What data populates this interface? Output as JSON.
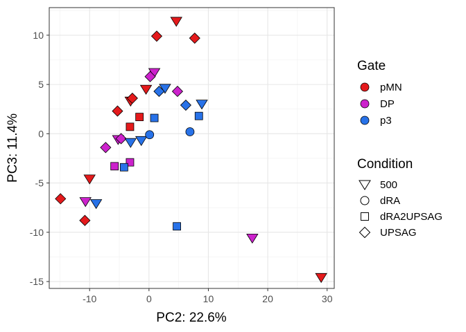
{
  "chart_data": {
    "type": "scatter",
    "xlabel": "PC2: 22.6%",
    "ylabel": "PC3: 11.4%",
    "xlim": [
      -16.8,
      31.2
    ],
    "ylim": [
      -15.7,
      12.8
    ],
    "xticks": [
      -10,
      0,
      10,
      20,
      30
    ],
    "yticks": [
      -15,
      -10,
      -5,
      0,
      5,
      10
    ],
    "xtick_labels": [
      "-10",
      "0",
      "10",
      "20",
      "30"
    ],
    "ytick_labels": [
      "-15",
      "-10",
      "-5",
      "0",
      "5",
      "10"
    ],
    "grid": true,
    "legend_position": "right",
    "colors": {
      "pMN": "#e41a1c",
      "DP": "#cc22cc",
      "p3": "#2872e8"
    },
    "legends": [
      {
        "title": "Gate",
        "kind": "fill",
        "entries": [
          {
            "label": "pMN"
          },
          {
            "label": "DP"
          },
          {
            "label": "p3"
          }
        ]
      },
      {
        "title": "Condition",
        "kind": "shape",
        "entries": [
          {
            "label": "500",
            "shape": "triangle-down"
          },
          {
            "label": "dRA",
            "shape": "circle"
          },
          {
            "label": "dRA2UPSAG",
            "shape": "square"
          },
          {
            "label": "UPSAG",
            "shape": "diamond"
          }
        ]
      }
    ],
    "points": [
      {
        "x": 4.6,
        "y": 11.4,
        "gate": "pMN",
        "condition": "500"
      },
      {
        "x": -0.5,
        "y": 4.5,
        "gate": "pMN",
        "condition": "500"
      },
      {
        "x": -3.1,
        "y": 3.3,
        "gate": "pMN",
        "condition": "500"
      },
      {
        "x": -10.0,
        "y": -4.6,
        "gate": "pMN",
        "condition": "500"
      },
      {
        "x": 29.0,
        "y": -14.6,
        "gate": "pMN",
        "condition": "500"
      },
      {
        "x": -3.2,
        "y": 0.7,
        "gate": "pMN",
        "condition": "dRA2UPSAG"
      },
      {
        "x": -1.6,
        "y": 1.7,
        "gate": "pMN",
        "condition": "dRA2UPSAG"
      },
      {
        "x": 1.3,
        "y": 9.9,
        "gate": "pMN",
        "condition": "UPSAG"
      },
      {
        "x": 7.7,
        "y": 9.7,
        "gate": "pMN",
        "condition": "UPSAG"
      },
      {
        "x": -2.8,
        "y": 3.6,
        "gate": "pMN",
        "condition": "UPSAG"
      },
      {
        "x": -5.3,
        "y": 2.3,
        "gate": "pMN",
        "condition": "UPSAG"
      },
      {
        "x": -14.9,
        "y": -6.6,
        "gate": "pMN",
        "condition": "UPSAG"
      },
      {
        "x": -10.8,
        "y": -8.8,
        "gate": "pMN",
        "condition": "UPSAG"
      },
      {
        "x": 0.9,
        "y": 6.2,
        "gate": "DP",
        "condition": "500"
      },
      {
        "x": -5.2,
        "y": -0.6,
        "gate": "DP",
        "condition": "500"
      },
      {
        "x": -10.7,
        "y": -6.9,
        "gate": "DP",
        "condition": "500"
      },
      {
        "x": 17.4,
        "y": -10.6,
        "gate": "DP",
        "condition": "500"
      },
      {
        "x": -5.8,
        "y": -3.3,
        "gate": "DP",
        "condition": "dRA2UPSAG"
      },
      {
        "x": -3.2,
        "y": -2.9,
        "gate": "DP",
        "condition": "dRA2UPSAG"
      },
      {
        "x": 0.2,
        "y": 5.8,
        "gate": "DP",
        "condition": "UPSAG"
      },
      {
        "x": 4.8,
        "y": 4.3,
        "gate": "DP",
        "condition": "UPSAG"
      },
      {
        "x": -7.3,
        "y": -1.4,
        "gate": "DP",
        "condition": "UPSAG"
      },
      {
        "x": -4.7,
        "y": -0.5,
        "gate": "DP",
        "condition": "UPSAG"
      },
      {
        "x": 2.7,
        "y": 4.6,
        "gate": "p3",
        "condition": "500"
      },
      {
        "x": 8.9,
        "y": 3.0,
        "gate": "p3",
        "condition": "500"
      },
      {
        "x": -1.3,
        "y": -0.7,
        "gate": "p3",
        "condition": "500"
      },
      {
        "x": -3.1,
        "y": -0.9,
        "gate": "p3",
        "condition": "500"
      },
      {
        "x": -8.9,
        "y": -7.1,
        "gate": "p3",
        "condition": "500"
      },
      {
        "x": 0.1,
        "y": -0.1,
        "gate": "p3",
        "condition": "dRA"
      },
      {
        "x": 6.9,
        "y": 0.2,
        "gate": "p3",
        "condition": "dRA"
      },
      {
        "x": 8.4,
        "y": 1.8,
        "gate": "p3",
        "condition": "dRA2UPSAG"
      },
      {
        "x": 0.9,
        "y": 1.6,
        "gate": "p3",
        "condition": "dRA2UPSAG"
      },
      {
        "x": -4.2,
        "y": -3.4,
        "gate": "p3",
        "condition": "dRA2UPSAG"
      },
      {
        "x": 4.7,
        "y": -9.4,
        "gate": "p3",
        "condition": "dRA2UPSAG"
      },
      {
        "x": 1.7,
        "y": 4.3,
        "gate": "p3",
        "condition": "UPSAG"
      },
      {
        "x": 6.2,
        "y": 2.9,
        "gate": "p3",
        "condition": "UPSAG"
      }
    ]
  }
}
